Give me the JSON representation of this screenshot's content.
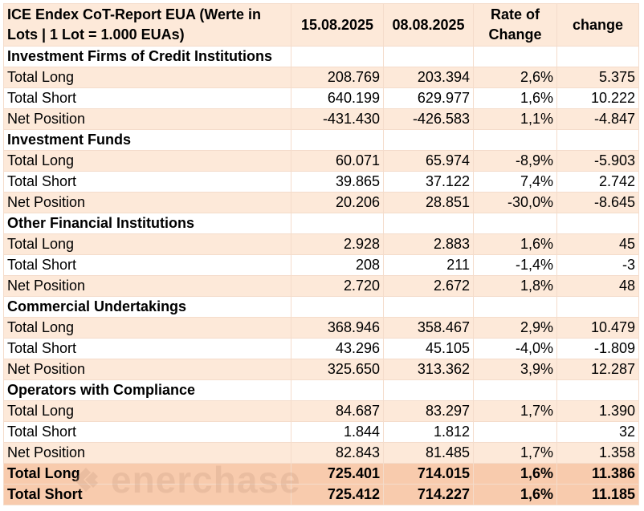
{
  "header": {
    "title": "ICE Endex CoT-Report EUA (Werte in Lots | 1 Lot = 1.000 EUAs)",
    "col_date1": "15.08.2025",
    "col_date2": "08.08.2025",
    "col_rate": "Rate of Change",
    "col_change": "change"
  },
  "groups": [
    {
      "name": "Investment Firms of Credit Institutions",
      "rows": [
        {
          "label": "Total Long",
          "d1": "208.769",
          "d2": "203.394",
          "rate": "2,6%",
          "change": "5.375"
        },
        {
          "label": "Total Short",
          "d1": "640.199",
          "d2": "629.977",
          "rate": "1,6%",
          "change": "10.222"
        },
        {
          "label": "Net Position",
          "d1": "-431.430",
          "d2": "-426.583",
          "rate": "1,1%",
          "change": "-4.847"
        }
      ]
    },
    {
      "name": "Investment Funds",
      "rows": [
        {
          "label": "Total Long",
          "d1": "60.071",
          "d2": "65.974",
          "rate": "-8,9%",
          "change": "-5.903"
        },
        {
          "label": "Total Short",
          "d1": "39.865",
          "d2": "37.122",
          "rate": "7,4%",
          "change": "2.742"
        },
        {
          "label": "Net Position",
          "d1": "20.206",
          "d2": "28.851",
          "rate": "-30,0%",
          "change": "-8.645"
        }
      ]
    },
    {
      "name": "Other Financial Institutions",
      "rows": [
        {
          "label": "Total Long",
          "d1": "2.928",
          "d2": "2.883",
          "rate": "1,6%",
          "change": "45"
        },
        {
          "label": "Total Short",
          "d1": "208",
          "d2": "211",
          "rate": "-1,4%",
          "change": "-3"
        },
        {
          "label": "Net Position",
          "d1": "2.720",
          "d2": "2.672",
          "rate": "1,8%",
          "change": "48"
        }
      ]
    },
    {
      "name": "Commercial Undertakings",
      "rows": [
        {
          "label": "Total Long",
          "d1": "368.946",
          "d2": "358.467",
          "rate": "2,9%",
          "change": "10.479"
        },
        {
          "label": "Total Short",
          "d1": "43.296",
          "d2": "45.105",
          "rate": "-4,0%",
          "change": "-1.809"
        },
        {
          "label": "Net Position",
          "d1": "325.650",
          "d2": "313.362",
          "rate": "3,9%",
          "change": "12.287"
        }
      ]
    },
    {
      "name": "Operators with Compliance",
      "rows": [
        {
          "label": "Total Long",
          "d1": "84.687",
          "d2": "83.297",
          "rate": "1,7%",
          "change": "1.390"
        },
        {
          "label": "Total Short",
          "d1": "1.844",
          "d2": "1.812",
          "rate": "",
          "change": "32"
        },
        {
          "label": "Net Position",
          "d1": "82.843",
          "d2": "81.485",
          "rate": "1,7%",
          "change": "1.358"
        }
      ]
    }
  ],
  "totals": [
    {
      "label": "Total Long",
      "d1": "725.401",
      "d2": "714.015",
      "rate": "1,6%",
      "change": "11.386"
    },
    {
      "label": "Total Short",
      "d1": "725.412",
      "d2": "714.227",
      "rate": "1,6%",
      "change": "11.185"
    }
  ],
  "watermark": {
    "text": "enerchase",
    "color": "#c89a82",
    "icon": "enerchase-logo-icon"
  },
  "colors": {
    "header_bg": "#fde9d9",
    "alt_row_bg": "#fde9d9",
    "total_bg": "#f8cbad",
    "border": "#f4dccb"
  }
}
